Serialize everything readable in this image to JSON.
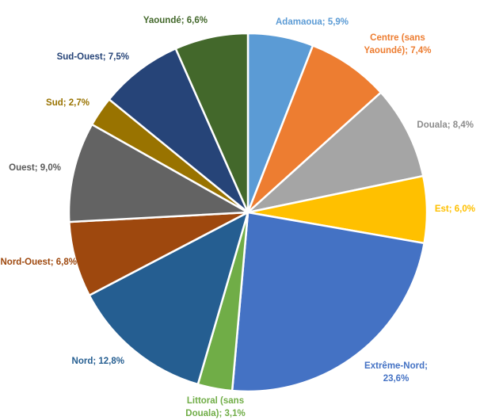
{
  "chart_data": {
    "type": "pie",
    "title": "",
    "start_angle": "top, clockwise",
    "categories": [
      "Adamaoua",
      "Centre (sans Yaoundé)",
      "Douala",
      "Est",
      "Extrême-Nord",
      "Littoral (sans Douala)",
      "Nord",
      "Nord-Ouest",
      "Ouest",
      "Sud",
      "Sud-Ouest",
      "Yaoundé"
    ],
    "values": [
      5.9,
      7.4,
      8.4,
      6.0,
      23.6,
      3.1,
      12.8,
      6.8,
      9.0,
      2.7,
      7.5,
      6.6
    ],
    "unit": "%",
    "data_labels": [
      "Adamaoua; 5,9%",
      "Centre (sans Yaoundé); 7,4%",
      "Douala; 8,4%",
      "Est; 6,0%",
      "Extrême-Nord; 23,6%",
      "Littoral (sans Douala); 3,1%",
      "Nord; 12,8%",
      "Nord-Ouest; 6,8%",
      "Ouest; 9,0%",
      "Sud; 2,7%",
      "Sud-Ouest; 7,5%",
      "Yaoundé; 6,6%"
    ],
    "colors": [
      "#5B9BD5",
      "#ED7D31",
      "#A5A5A5",
      "#FFC000",
      "#4472C4",
      "#70AD47",
      "#255E91",
      "#9E480E",
      "#636363",
      "#997300",
      "#264478",
      "#43682B"
    ],
    "label_colors": [
      "#5B9BD5",
      "#ED7D31",
      "#8C8C8C",
      "#FFC000",
      "#4472C4",
      "#70AD47",
      "#255E91",
      "#9E480E",
      "#595959",
      "#997300",
      "#264478",
      "#43682B"
    ],
    "legend": "none"
  }
}
